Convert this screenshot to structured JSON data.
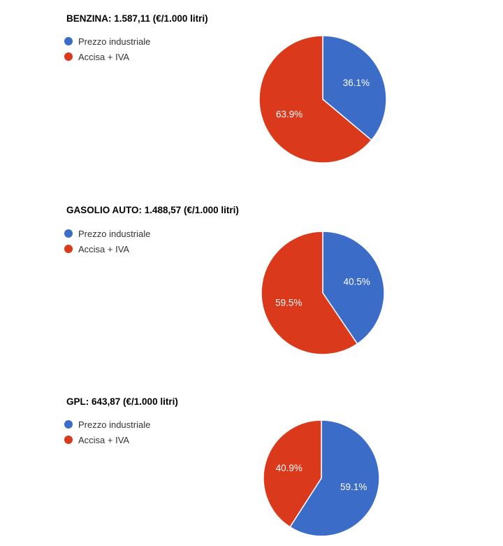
{
  "page": {
    "background_color": "#ffffff"
  },
  "colors": {
    "series_blue": "#3b6cc7",
    "series_red": "#da3a1b",
    "slice_label_text": "#ffffff",
    "title_text": "#000000",
    "legend_text": "#333333",
    "slice_divider": "#ffffff"
  },
  "chart_data": [
    {
      "type": "pie",
      "title": "BENZINA: 1.587,11 (€/1.000 litri)",
      "fuel_name": "BENZINA",
      "total_price": "1.587,11",
      "unit": "€/1.000 litri",
      "legend_position": "left",
      "start_angle_deg": 0,
      "direction": "clockwise",
      "slices": [
        {
          "label": "Prezzo industriale",
          "value": 36.1,
          "display": "36.1%",
          "color": "#3b6cc7"
        },
        {
          "label": "Accisa + IVA",
          "value": 63.9,
          "display": "63.9%",
          "color": "#da3a1b"
        }
      ]
    },
    {
      "type": "pie",
      "title": "GASOLIO AUTO: 1.488,57 (€/1.000 litri)",
      "fuel_name": "GASOLIO AUTO",
      "total_price": "1.488,57",
      "unit": "€/1.000 litri",
      "legend_position": "left",
      "start_angle_deg": 0,
      "direction": "clockwise",
      "slices": [
        {
          "label": "Prezzo industriale",
          "value": 40.5,
          "display": "40.5%",
          "color": "#3b6cc7"
        },
        {
          "label": "Accisa + IVA",
          "value": 59.5,
          "display": "59.5%",
          "color": "#da3a1b"
        }
      ]
    },
    {
      "type": "pie",
      "title": "GPL: 643,87 (€/1.000 litri)",
      "fuel_name": "GPL",
      "total_price": "643,87",
      "unit": "€/1.000 litri",
      "legend_position": "left",
      "start_angle_deg": 0,
      "direction": "clockwise",
      "slices": [
        {
          "label": "Prezzo industriale",
          "value": 59.1,
          "display": "59.1%",
          "color": "#3b6cc7"
        },
        {
          "label": "Accisa + IVA",
          "value": 40.9,
          "display": "40.9%",
          "color": "#da3a1b"
        }
      ]
    }
  ]
}
